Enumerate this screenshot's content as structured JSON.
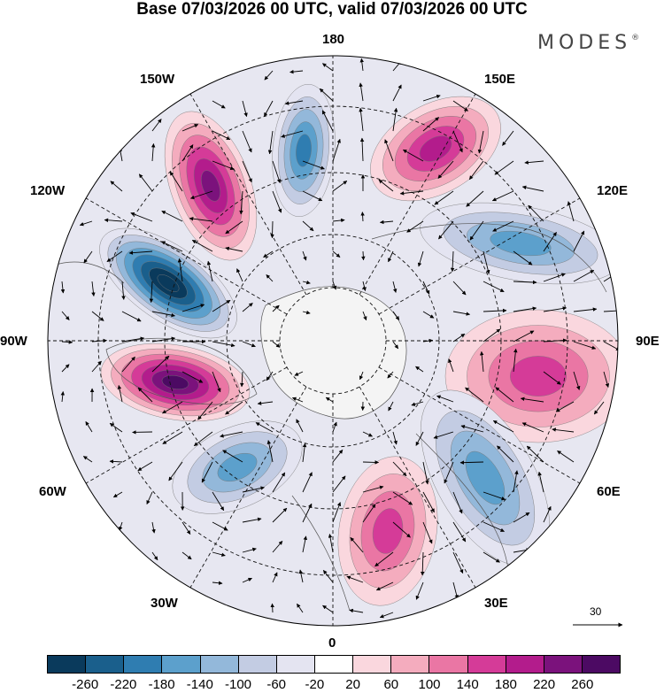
{
  "title": "Base 07/03/2026 00 UTC, valid 07/03/2026 00 UTC",
  "brand": {
    "name": "MODES",
    "mark": "®"
  },
  "longitude_labels": {
    "lon180": "180",
    "lon150e": "150E",
    "lon120e": "120E",
    "lon90e": "90E",
    "lon60e": "60E",
    "lon30e": "30E",
    "lon0": "0",
    "lon30w": "30W",
    "lon60w": "60W",
    "lon90w": "90W",
    "lon120w": "120W",
    "lon150w": "150W"
  },
  "reference_vector": {
    "label": "30"
  },
  "colorbar": {
    "colors": [
      "#0a3a5c",
      "#1a5f8c",
      "#2f7db1",
      "#5ca0cc",
      "#93b8da",
      "#c3cce3",
      "#e4e4f1",
      "#ffffff",
      "#fad7de",
      "#f4acbe",
      "#ea76a4",
      "#d53b98",
      "#b31c8c",
      "#7b127c",
      "#4c0a63"
    ],
    "ticks": [
      "-260",
      "-220",
      "-180",
      "-140",
      "-100",
      "-60",
      "-20",
      "20",
      "60",
      "100",
      "140",
      "180",
      "220",
      "260"
    ]
  }
}
